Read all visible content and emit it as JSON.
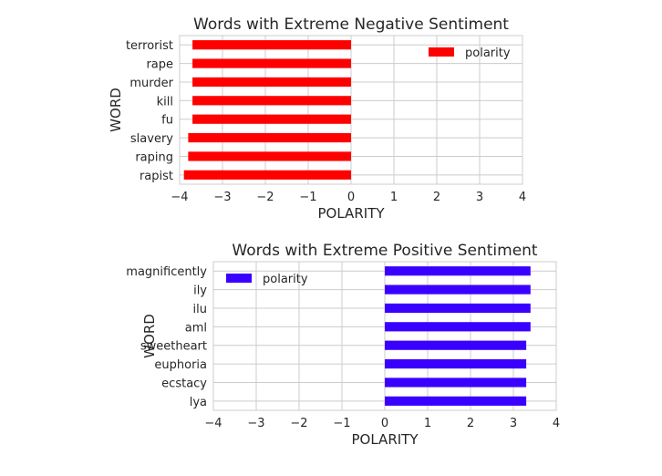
{
  "chart_data": [
    {
      "type": "bar",
      "orientation": "horizontal",
      "title": "Words with Extreme Negative Sentiment",
      "xlabel": "POLARITY",
      "ylabel": "WORD",
      "xlim": [
        -4,
        4
      ],
      "xticks": [
        -4,
        -3,
        -2,
        -1,
        0,
        1,
        2,
        3,
        4
      ],
      "xtick_labels": [
        "−4",
        "−3",
        "−2",
        "−1",
        "0",
        "1",
        "2",
        "3",
        "4"
      ],
      "grid": true,
      "legend": {
        "position": "top-right",
        "entries": [
          "polarity"
        ]
      },
      "color": "#ff0000",
      "categories": [
        "terrorist",
        "rape",
        "murder",
        "kill",
        "fu",
        "slavery",
        "raping",
        "rapist"
      ],
      "series": [
        {
          "name": "polarity",
          "values": [
            -3.7,
            -3.7,
            -3.7,
            -3.7,
            -3.7,
            -3.8,
            -3.8,
            -3.9
          ]
        }
      ]
    },
    {
      "type": "bar",
      "orientation": "horizontal",
      "title": "Words with Extreme Positive Sentiment",
      "xlabel": "POLARITY",
      "ylabel": "WORD",
      "xlim": [
        -4,
        4
      ],
      "xticks": [
        -4,
        -3,
        -2,
        -1,
        0,
        1,
        2,
        3,
        4
      ],
      "xtick_labels": [
        "−4",
        "−3",
        "−2",
        "−1",
        "0",
        "1",
        "2",
        "3",
        "4"
      ],
      "grid": true,
      "legend": {
        "position": "top-left",
        "entries": [
          "polarity"
        ]
      },
      "color": "#3a00ff",
      "categories": [
        "magnificently",
        "ily",
        "ilu",
        "aml",
        "sweetheart",
        "euphoria",
        "ecstacy",
        "lya"
      ],
      "series": [
        {
          "name": "polarity",
          "values": [
            3.4,
            3.4,
            3.4,
            3.4,
            3.3,
            3.3,
            3.3,
            3.3
          ]
        }
      ]
    }
  ]
}
